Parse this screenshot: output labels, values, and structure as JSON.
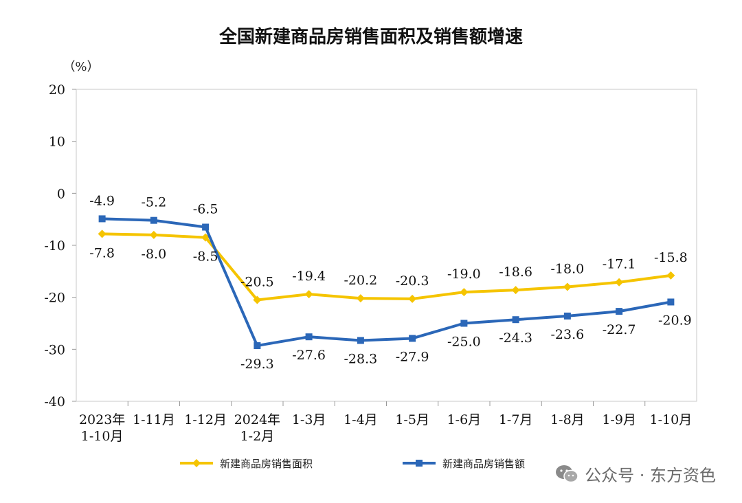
{
  "chart_data": {
    "type": "line",
    "title": "全国新建商品房销售面积及销售额增速",
    "ylabel": "（%）",
    "ylim": [
      -40,
      20
    ],
    "yticks": [
      20,
      10,
      0,
      -10,
      -20,
      -30,
      -40
    ],
    "categories": [
      [
        "2023年",
        "1-10月"
      ],
      [
        "1-11月"
      ],
      [
        "1-12月"
      ],
      [
        "2024年",
        "1-2月"
      ],
      [
        "1-3月"
      ],
      [
        "1-4月"
      ],
      [
        "1-5月"
      ],
      [
        "1-6月"
      ],
      [
        "1-7月"
      ],
      [
        "1-8月"
      ],
      [
        "1-9月"
      ],
      [
        "1-10月"
      ]
    ],
    "series": [
      {
        "name": "新建商品房销售面积",
        "color": "#f5c400",
        "marker": "diamond",
        "values": [
          -7.8,
          -8.0,
          -8.5,
          -20.5,
          -19.4,
          -20.2,
          -20.3,
          -19.0,
          -18.6,
          -18.0,
          -17.1,
          -15.8
        ],
        "labels": [
          "-7.8",
          "-8.0",
          "-8.5",
          "-20.5",
          "-19.4",
          "-20.2",
          "-20.3",
          "-19.0",
          "-18.6",
          "-18.0",
          "-17.1",
          "-15.8"
        ]
      },
      {
        "name": "新建商品房销售额",
        "color": "#2b67b8",
        "marker": "square",
        "values": [
          -4.9,
          -5.2,
          -6.5,
          -29.3,
          -27.6,
          -28.3,
          -27.9,
          -25.0,
          -24.3,
          -23.6,
          -22.7,
          -20.9
        ],
        "labels": [
          "-4.9",
          "-5.2",
          "-6.5",
          "-29.3",
          "-27.6",
          "-28.3",
          "-27.9",
          "-25.0",
          "-24.3",
          "-23.6",
          "-22.7",
          "-20.9"
        ]
      }
    ],
    "legend_position": "bottom"
  },
  "watermark": {
    "text": "公众号 · 东方资色",
    "icon": "wechat-icon"
  }
}
